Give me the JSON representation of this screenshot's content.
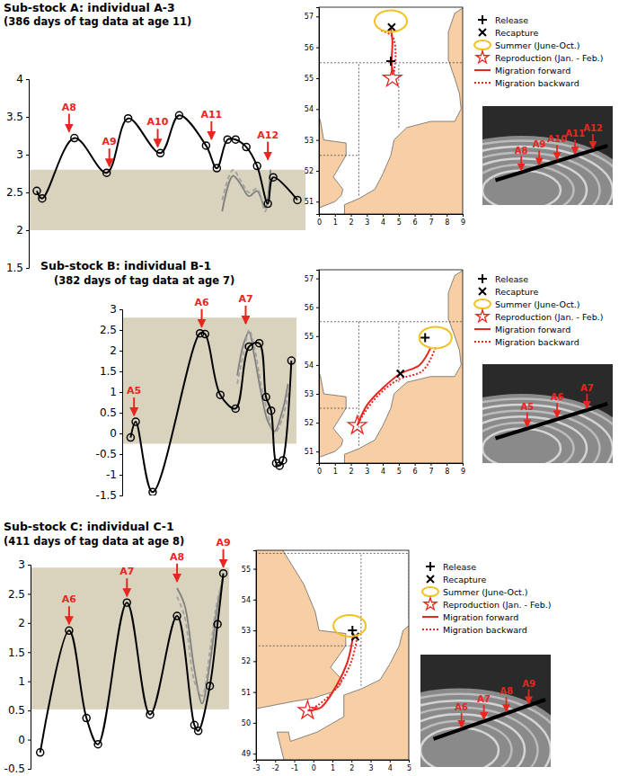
{
  "chart_data": [
    {
      "type": "line",
      "title": "Sub-stock A: individual A-3",
      "subtitle": "(386 days of tag data at age 11)",
      "xlim": [
        0,
        103
      ],
      "ylim": [
        1.5,
        4
      ],
      "yticks": [
        1.5,
        2,
        2.5,
        3,
        3.5,
        4
      ],
      "tick_labels": "y",
      "band": [
        2,
        2.8
      ],
      "series": [
        {
          "color": "#000000",
          "marker": "circle",
          "line_style": "solid",
          "x": [
            3,
            5,
            17,
            29,
            37,
            49,
            56,
            66,
            70,
            74,
            77,
            81,
            85,
            89,
            91,
            100
          ],
          "values": [
            2.52,
            2.42,
            3.22,
            2.76,
            3.48,
            3.02,
            3.52,
            3.12,
            2.82,
            3.2,
            3.2,
            3.1,
            2.85,
            2.35,
            2.7,
            2.4
          ]
        },
        {
          "color": "#7f7f7f",
          "line_style": "solid",
          "x": [
            72,
            76,
            79,
            82,
            85,
            88,
            90
          ],
          "values": [
            2.25,
            2.72,
            2.6,
            2.45,
            2.52,
            2.3,
            2.8
          ]
        },
        {
          "color": "#a0a0a0",
          "line_style": "dashed",
          "x": [
            72,
            76,
            79,
            82,
            85,
            88,
            90
          ],
          "values": [
            2.4,
            2.8,
            2.65,
            2.5,
            2.55,
            2.25,
            2.75
          ]
        }
      ],
      "annotations": [
        {
          "text": "A8",
          "x": 15
        },
        {
          "text": "A9",
          "x": 30
        },
        {
          "text": "A10",
          "x": 48
        },
        {
          "text": "A11",
          "x": 68
        },
        {
          "text": "A12",
          "x": 89
        }
      ]
    },
    {
      "type": "map",
      "xlim": [
        0,
        9
      ],
      "ylim": [
        50.6,
        57.3
      ],
      "xticks": [
        0,
        1,
        2,
        3,
        4,
        5,
        6,
        7,
        8,
        9
      ],
      "yticks": [
        51,
        52,
        53,
        54,
        55,
        56,
        57
      ],
      "legend": "right",
      "series": [
        {
          "name": "Release",
          "type": "scatter",
          "marker": "plus",
          "color": "#000000",
          "x": [
            4.5
          ],
          "values": [
            55.55
          ]
        },
        {
          "name": "Recapture",
          "type": "scatter",
          "marker": "x",
          "color": "#000000",
          "x": [
            4.55
          ],
          "values": [
            56.65
          ]
        },
        {
          "name": "Summer (June-Oct.)",
          "type": "scatter",
          "marker": "ellipse",
          "color": "#f2c11b",
          "x": [
            4.5
          ],
          "values": [
            56.85
          ]
        },
        {
          "name": "Reproduction (Jan. - Feb.)",
          "type": "scatter",
          "marker": "star",
          "color": "#e8251f",
          "x": [
            4.6
          ],
          "values": [
            55.0
          ]
        },
        {
          "name": "Migration forward",
          "type": "line",
          "line_style": "solid",
          "color": "#e8251f",
          "x": [
            4.6,
            4.55,
            4.6,
            4.5
          ],
          "values": [
            55.1,
            55.55,
            56.2,
            56.6
          ]
        },
        {
          "name": "Migration backward",
          "type": "line",
          "line_style": "dotted",
          "color": "#e8251f",
          "x": [
            3.9,
            4.6,
            4.8,
            4.7
          ],
          "values": [
            56.55,
            56.35,
            55.8,
            55.2
          ]
        }
      ]
    },
    {
      "type": "line",
      "title": "Sub-stock B: individual B-1",
      "subtitle": "(382 days of tag data at age 7)",
      "xlim": [
        0,
        103
      ],
      "ylim": [
        -1.5,
        3
      ],
      "yticks": [
        -1.5,
        -1,
        -0.5,
        0,
        0.5,
        1,
        1.5,
        2,
        2.5,
        3
      ],
      "tick_labels": "y",
      "band": [
        -0.25,
        2.8
      ],
      "series": [
        {
          "color": "#000000",
          "marker": "circle",
          "line_style": "solid",
          "x": [
            5,
            8,
            18,
            46,
            49,
            58,
            67,
            75,
            81,
            85,
            88,
            91,
            93,
            95,
            100
          ],
          "values": [
            -0.1,
            0.28,
            -1.42,
            2.42,
            2.4,
            0.93,
            0.6,
            2.1,
            2.18,
            0.88,
            0.55,
            -0.72,
            -0.78,
            -0.65,
            1.76
          ]
        },
        {
          "color": "#7f7f7f",
          "line_style": "solid",
          "x": [
            68,
            72,
            75,
            78,
            82,
            86,
            90,
            95,
            98
          ],
          "values": [
            1.4,
            2.2,
            2.45,
            1.9,
            1.0,
            0.3,
            0.05,
            0.6,
            1.2
          ]
        },
        {
          "color": "#a0a0a0",
          "line_style": "dashed",
          "x": [
            68,
            72,
            75,
            78,
            82,
            86,
            90,
            95,
            98
          ],
          "values": [
            1.2,
            2.0,
            2.5,
            2.1,
            1.2,
            0.5,
            0.0,
            0.4,
            1.0
          ]
        }
      ],
      "annotations": [
        {
          "text": "A5",
          "x": 7
        },
        {
          "text": "A6",
          "x": 47
        },
        {
          "text": "A7",
          "x": 73
        }
      ]
    },
    {
      "type": "map",
      "xlim": [
        0,
        9
      ],
      "ylim": [
        50.6,
        57.3
      ],
      "xticks": [
        0,
        1,
        2,
        3,
        4,
        5,
        6,
        7,
        8,
        9
      ],
      "yticks": [
        51,
        52,
        53,
        54,
        55,
        56,
        57
      ],
      "legend": "right",
      "series": [
        {
          "name": "Release",
          "type": "scatter",
          "marker": "plus",
          "color": "#000000",
          "x": [
            6.65
          ],
          "values": [
            54.95
          ]
        },
        {
          "name": "Recapture",
          "type": "scatter",
          "marker": "x",
          "color": "#000000",
          "x": [
            5.1
          ],
          "values": [
            53.7
          ]
        },
        {
          "name": "Summer (June-Oct.)",
          "type": "scatter",
          "marker": "ellipse",
          "color": "#f2c11b",
          "x": [
            7.3
          ],
          "values": [
            54.95
          ]
        },
        {
          "name": "Reproduction (Jan. - Feb.)",
          "type": "scatter",
          "marker": "star",
          "color": "#e8251f",
          "x": [
            2.4
          ],
          "values": [
            51.9
          ]
        },
        {
          "name": "Migration forward",
          "type": "line",
          "line_style": "solid",
          "color": "#e8251f",
          "x": [
            2.4,
            3.0,
            4.0,
            5.1,
            6.3,
            7.0
          ],
          "values": [
            51.9,
            52.6,
            53.2,
            53.7,
            54.0,
            54.6
          ]
        },
        {
          "name": "Migration backward",
          "type": "line",
          "line_style": "dotted",
          "color": "#e8251f",
          "x": [
            7.3,
            6.5,
            5.0,
            3.8,
            2.8,
            2.4
          ],
          "values": [
            54.6,
            53.8,
            53.5,
            53.0,
            52.3,
            51.9
          ]
        }
      ]
    },
    {
      "type": "line",
      "title": "Sub-stock C: individual C-1",
      "subtitle": "(411 days of tag data at age 8)",
      "xlim": [
        0,
        103
      ],
      "ylim": [
        -0.5,
        3
      ],
      "yticks": [
        -0.5,
        0,
        0.5,
        1,
        1.5,
        2,
        2.5,
        3
      ],
      "tick_labels": "y",
      "band": [
        0.52,
        2.95
      ],
      "series": [
        {
          "color": "#000000",
          "marker": "circle",
          "line_style": "solid",
          "x": [
            5,
            20,
            29,
            35,
            50,
            62,
            76,
            85,
            87,
            93,
            97,
            100
          ],
          "values": [
            -0.22,
            1.87,
            0.37,
            -0.08,
            2.35,
            0.43,
            2.12,
            0.25,
            0.15,
            0.92,
            1.98,
            2.85
          ]
        },
        {
          "color": "#7f7f7f",
          "line_style": "solid",
          "x": [
            76,
            80,
            85,
            89,
            93,
            97,
            100
          ],
          "values": [
            2.6,
            2.3,
            1.2,
            0.62,
            1.3,
            2.3,
            2.8
          ]
        },
        {
          "color": "#a0a0a0",
          "line_style": "dashed",
          "x": [
            76,
            80,
            85,
            89,
            93,
            97,
            100
          ],
          "values": [
            2.45,
            2.1,
            1.0,
            0.75,
            1.5,
            2.4,
            2.75
          ]
        }
      ],
      "annotations": [
        {
          "text": "A6",
          "x": 20
        },
        {
          "text": "A7",
          "x": 50
        },
        {
          "text": "A8",
          "x": 76
        },
        {
          "text": "A9",
          "x": 100
        }
      ]
    },
    {
      "type": "map",
      "xlim": [
        -3,
        5
      ],
      "ylim": [
        48.8,
        55.6
      ],
      "xticks": [
        -3,
        -2,
        -1,
        0,
        1,
        2,
        3,
        4,
        5
      ],
      "yticks": [
        49,
        50,
        51,
        52,
        53,
        54,
        55
      ],
      "legend": "right",
      "series": [
        {
          "name": "Release",
          "type": "scatter",
          "marker": "plus",
          "color": "#000000",
          "x": [
            2.05
          ],
          "values": [
            53.0
          ]
        },
        {
          "name": "Recapture",
          "type": "scatter",
          "marker": "x",
          "color": "#000000",
          "x": [
            2.2
          ],
          "values": [
            52.8
          ]
        },
        {
          "name": "Summer (June-Oct.)",
          "type": "scatter",
          "marker": "ellipse",
          "color": "#f2c11b",
          "x": [
            1.9
          ],
          "values": [
            53.15
          ]
        },
        {
          "name": "Reproduction (Jan. - Feb.)",
          "type": "scatter",
          "marker": "star",
          "color": "#e8251f",
          "x": [
            -0.3
          ],
          "values": [
            50.4
          ]
        },
        {
          "name": "Migration forward",
          "type": "line",
          "line_style": "solid",
          "color": "#e8251f",
          "x": [
            -0.3,
            0.4,
            1.2,
            1.8,
            2.1
          ],
          "values": [
            50.4,
            50.5,
            51.2,
            52.0,
            52.9
          ]
        },
        {
          "name": "Migration backward",
          "type": "line",
          "line_style": "dotted",
          "color": "#e8251f",
          "x": [
            2.3,
            2.0,
            1.3,
            0.3,
            -0.3
          ],
          "values": [
            52.8,
            52.0,
            51.2,
            50.6,
            50.4
          ]
        }
      ]
    }
  ]
}
